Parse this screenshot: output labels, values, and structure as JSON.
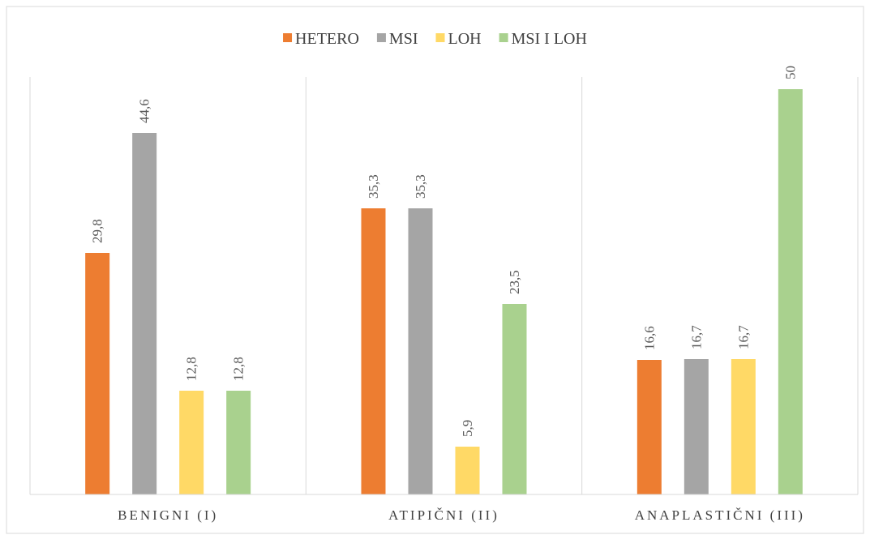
{
  "chart_data": {
    "type": "bar",
    "categories": [
      "BENIGNI (I)",
      "ATIPIČNI (II)",
      "ANAPLASTIČNI (III)"
    ],
    "series": [
      {
        "name": "HETERO",
        "color": "#ED7D31",
        "values": [
          29.8,
          35.3,
          16.6
        ],
        "labels": [
          "29,8",
          "35,3",
          "16,6"
        ]
      },
      {
        "name": "MSI",
        "color": "#A5A5A5",
        "values": [
          44.6,
          35.3,
          16.7
        ],
        "labels": [
          "44,6",
          "35,3",
          "16,7"
        ]
      },
      {
        "name": "LOH",
        "color": "#FFD966",
        "values": [
          12.8,
          5.9,
          16.7
        ],
        "labels": [
          "12,8",
          "5,9",
          "16,7"
        ]
      },
      {
        "name": "MSI I LOH",
        "color": "#A9D18E",
        "values": [
          12.8,
          23.5,
          50
        ],
        "labels": [
          "12,8",
          "23,5",
          "50"
        ]
      }
    ],
    "ylim": [
      0,
      50
    ],
    "legend_position": "top",
    "grid": false,
    "data_labels": "rotated"
  }
}
